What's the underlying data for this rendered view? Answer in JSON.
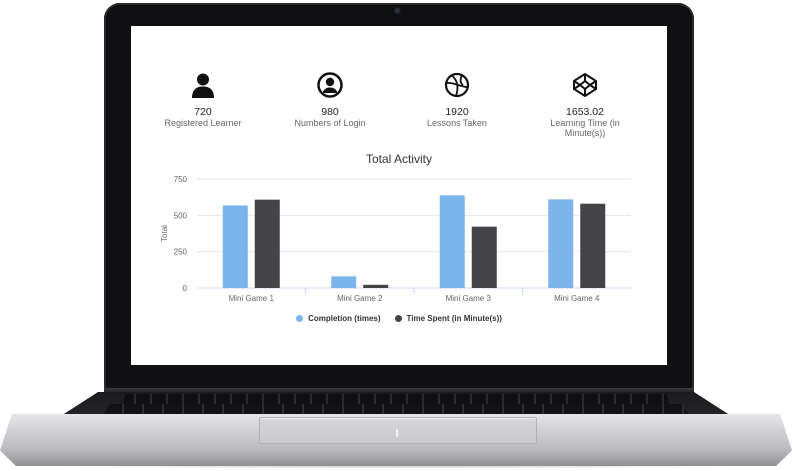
{
  "stats": [
    {
      "value": "720",
      "label": "Registered Learner",
      "icon": "person-icon"
    },
    {
      "value": "980",
      "label": "Numbers of Login",
      "icon": "user-circle-icon"
    },
    {
      "value": "1920",
      "label": "Lessons Taken",
      "icon": "basketball-icon"
    },
    {
      "value": "1653.02",
      "label": "Learning Time (in Minute(s))",
      "icon": "codepen-icon"
    }
  ],
  "chart_data": {
    "type": "bar",
    "title": "Total Activity",
    "ylabel": "Total",
    "xlabel": "",
    "ylim": [
      0,
      750
    ],
    "yticks": [
      "0",
      "250",
      "500",
      "750"
    ],
    "categories": [
      "Mini Game 1",
      "Mini Game 2",
      "Mini Game 3",
      "Mini Game 4"
    ],
    "series": [
      {
        "name": "Completion (times)",
        "color": "#7cb5ec",
        "values": [
          568,
          80,
          638,
          610
        ]
      },
      {
        "name": "Time Spent (in Minute(s))",
        "color": "#434348",
        "values": [
          608,
          22,
          422,
          580
        ]
      }
    ],
    "grid": true,
    "legend": "bottom"
  },
  "colors": {
    "bezel": "#101012",
    "screen": "#ffffff",
    "completion": "#7cb5ec",
    "time_spent": "#434348"
  }
}
